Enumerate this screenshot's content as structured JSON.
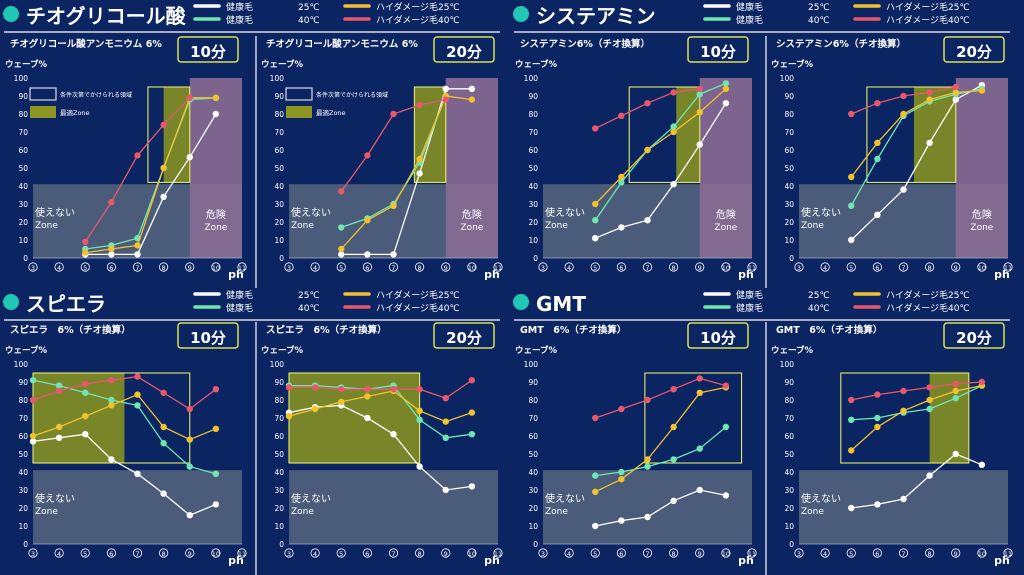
{
  "colors": {
    "background": "#0b2462",
    "healthy_25": "#ffffff",
    "damaged_25": "#f2c12e",
    "healthy_40": "#6fe6b2",
    "damaged_40": "#e8586a",
    "unusable_zone": "#56667f",
    "danger_zone": "#8a6c94",
    "optimal_zone": "#8c9620",
    "conditional_box": "#e3e86b"
  },
  "common": {
    "wave_label": "ウェーブ%",
    "ph_label": "ph",
    "unusable_zone_label_1": "使えない",
    "unusable_zone_label_2": "Zone",
    "danger_zone_label_1": "危険",
    "danger_zone_label_2": "Zone",
    "y_ticks": [
      "0",
      "10",
      "20",
      "30",
      "40",
      "50",
      "60",
      "70",
      "80",
      "90",
      "100"
    ],
    "x_ticks": [
      "3",
      "4",
      "5",
      "6",
      "7",
      "8",
      "9",
      "10",
      "11"
    ]
  },
  "legend_inline": {
    "conditional": "条件次第でかけられる領域",
    "optimal": "最適Zone"
  },
  "sections": [
    {
      "title": "チオグリコール酸",
      "legend": [
        {
          "name": "健康毛",
          "temp": "25℃",
          "color": "#ffffff"
        },
        {
          "name": "健康毛",
          "temp": "40℃",
          "color": "#6fe6b2"
        },
        {
          "name": "ハイダメージ毛",
          "temp": "25℃",
          "color": "#f2c12e"
        },
        {
          "name": "ハイダメージ毛",
          "temp": "40℃",
          "color": "#e8586a"
        }
      ]
    },
    {
      "title": "システアミン",
      "legend": [
        {
          "name": "健康毛",
          "temp": "25℃",
          "color": "#ffffff"
        },
        {
          "name": "健康毛",
          "temp": "40℃",
          "color": "#6fe6b2"
        },
        {
          "name": "ハイダメージ毛",
          "temp": "25℃",
          "color": "#f2c12e"
        },
        {
          "name": "ハイダメージ毛",
          "temp": "40℃",
          "color": "#e8586a"
        }
      ]
    },
    {
      "title": "スピエラ",
      "legend": [
        {
          "name": "健康毛",
          "temp": "25℃",
          "color": "#ffffff"
        },
        {
          "name": "健康毛",
          "temp": "40℃",
          "color": "#6fe6b2"
        },
        {
          "name": "ハイダメージ毛",
          "temp": "25℃",
          "color": "#f2c12e"
        },
        {
          "name": "ハイダメージ毛",
          "temp": "40℃",
          "color": "#e8586a"
        }
      ]
    },
    {
      "title": "GMT",
      "legend": [
        {
          "name": "健康毛",
          "temp": "25℃",
          "color": "#ffffff"
        },
        {
          "name": "健康毛",
          "temp": "40℃",
          "color": "#6fe6b2"
        },
        {
          "name": "ハイダメージ毛",
          "temp": "25℃",
          "color": "#f2c12e"
        },
        {
          "name": "ハイダメージ毛",
          "temp": "40℃",
          "color": "#e8586a"
        }
      ]
    }
  ],
  "chart_data": [
    {
      "type": "line",
      "title": "チオグリコール酸アンモニウム 6%",
      "time": "10分",
      "xlabel": "ph",
      "ylabel": "ウェーブ%",
      "xlim": [
        3,
        11
      ],
      "ylim": [
        0,
        100
      ],
      "unusable_below": 41,
      "danger_x": [
        9,
        11
      ],
      "conditional_box": {
        "x": [
          7.4,
          9
        ],
        "y": [
          42,
          95
        ]
      },
      "optimal_zone": {
        "x": [
          8,
          9
        ],
        "y": [
          42,
          95
        ]
      },
      "show_inline_legend": true,
      "series": [
        {
          "color": "#ffffff",
          "x": [
            5,
            6,
            7,
            8,
            9,
            10
          ],
          "y": [
            2,
            2,
            2,
            34,
            56,
            80
          ]
        },
        {
          "color": "#6fe6b2",
          "x": [
            5,
            6,
            7,
            8,
            9,
            10
          ],
          "y": [
            5,
            7,
            11,
            50,
            88,
            89
          ]
        },
        {
          "color": "#f2c12e",
          "x": [
            5,
            6,
            7,
            8,
            9,
            10
          ],
          "y": [
            3,
            5,
            7,
            50,
            89,
            89
          ]
        },
        {
          "color": "#e8586a",
          "x": [
            5,
            6,
            7,
            8,
            9
          ],
          "y": [
            9,
            31,
            57,
            74,
            89
          ]
        }
      ]
    },
    {
      "type": "line",
      "title": "チオグリコール酸アンモニウム 6%",
      "time": "20分",
      "xlabel": "ph",
      "ylabel": "ウェーブ%",
      "xlim": [
        3,
        11
      ],
      "ylim": [
        0,
        100
      ],
      "unusable_below": 41,
      "danger_x": [
        9,
        11
      ],
      "conditional_box": {
        "x": [
          7.8,
          9
        ],
        "y": [
          42,
          95
        ]
      },
      "optimal_zone": {
        "x": [
          7.8,
          9
        ],
        "y": [
          42,
          95
        ]
      },
      "show_inline_legend": true,
      "series": [
        {
          "color": "#ffffff",
          "x": [
            5,
            6,
            7,
            8,
            9,
            10
          ],
          "y": [
            2,
            2,
            2,
            47,
            94,
            94
          ]
        },
        {
          "color": "#6fe6b2",
          "x": [
            5,
            6,
            7,
            8,
            9
          ],
          "y": [
            17,
            22,
            30,
            53,
            90
          ]
        },
        {
          "color": "#f2c12e",
          "x": [
            5,
            6,
            7,
            8,
            9,
            10
          ],
          "y": [
            5,
            21,
            29,
            55,
            90,
            88
          ]
        },
        {
          "color": "#e8586a",
          "x": [
            5,
            6,
            7,
            8,
            9
          ],
          "y": [
            37,
            57,
            80,
            85,
            88
          ]
        }
      ]
    },
    {
      "type": "line",
      "title": "システアミン6%（チオ換算）",
      "time": "10分",
      "xlabel": "ph",
      "ylabel": "ウェーブ%",
      "xlim": [
        3,
        11
      ],
      "ylim": [
        0,
        100
      ],
      "unusable_below": 41,
      "danger_x": [
        9,
        11
      ],
      "conditional_box": {
        "x": [
          6.3,
          9
        ],
        "y": [
          42,
          95
        ]
      },
      "optimal_zone": {
        "x": [
          8.1,
          9
        ],
        "y": [
          42,
          95
        ]
      },
      "show_inline_legend": false,
      "series": [
        {
          "color": "#ffffff",
          "x": [
            5,
            6,
            7,
            8,
            9,
            10
          ],
          "y": [
            11,
            17,
            21,
            41,
            63,
            86
          ]
        },
        {
          "color": "#6fe6b2",
          "x": [
            5,
            6,
            7,
            8,
            9,
            10
          ],
          "y": [
            21,
            42,
            60,
            73,
            91,
            97
          ]
        },
        {
          "color": "#f2c12e",
          "x": [
            5,
            6,
            7,
            8,
            9,
            10
          ],
          "y": [
            30,
            45,
            60,
            70,
            81,
            94
          ]
        },
        {
          "color": "#e8586a",
          "x": [
            5,
            6,
            7,
            8,
            9
          ],
          "y": [
            72,
            79,
            86,
            92,
            94
          ]
        }
      ]
    },
    {
      "type": "line",
      "title": "システアミン6%（チオ換算）",
      "time": "20分",
      "xlabel": "ph",
      "ylabel": "ウェーブ%",
      "xlim": [
        3,
        11
      ],
      "ylim": [
        0,
        100
      ],
      "unusable_below": 41,
      "danger_x": [
        9,
        11
      ],
      "conditional_box": {
        "x": [
          5.6,
          9
        ],
        "y": [
          42,
          95
        ]
      },
      "optimal_zone": {
        "x": [
          7.4,
          9
        ],
        "y": [
          42,
          95
        ]
      },
      "show_inline_legend": false,
      "series": [
        {
          "color": "#ffffff",
          "x": [
            5,
            6,
            7,
            8,
            9,
            10
          ],
          "y": [
            10,
            24,
            38,
            64,
            88,
            96
          ]
        },
        {
          "color": "#6fe6b2",
          "x": [
            5,
            6,
            7,
            8,
            9,
            10
          ],
          "y": [
            29,
            55,
            79,
            87,
            91,
            94
          ]
        },
        {
          "color": "#f2c12e",
          "x": [
            5,
            6,
            7,
            8,
            9,
            10
          ],
          "y": [
            45,
            64,
            80,
            88,
            92,
            93
          ]
        },
        {
          "color": "#e8586a",
          "x": [
            5,
            6,
            7,
            8,
            9
          ],
          "y": [
            80,
            86,
            90,
            92,
            95
          ]
        }
      ]
    },
    {
      "type": "line",
      "title": "スピエラ　6%（チオ換算）",
      "time": "10分",
      "xlabel": "ph",
      "ylabel": "ウェーブ%",
      "xlim": [
        3,
        11
      ],
      "ylim": [
        0,
        100
      ],
      "unusable_below": 41,
      "danger_x": null,
      "conditional_box": {
        "x": [
          3,
          9
        ],
        "y": [
          45,
          95
        ]
      },
      "optimal_zone": {
        "x": [
          3,
          6.5
        ],
        "y": [
          45,
          95
        ]
      },
      "show_inline_legend": false,
      "series": [
        {
          "color": "#ffffff",
          "x": [
            3,
            4,
            5,
            6,
            7,
            8,
            9,
            10
          ],
          "y": [
            57,
            59,
            61,
            47,
            39,
            28,
            16,
            22
          ]
        },
        {
          "color": "#6fe6b2",
          "x": [
            3,
            4,
            5,
            6,
            7,
            8,
            9,
            10
          ],
          "y": [
            91,
            88,
            84,
            80,
            77,
            56,
            43,
            39
          ]
        },
        {
          "color": "#f2c12e",
          "x": [
            3,
            4,
            5,
            6,
            7,
            8,
            9,
            10
          ],
          "y": [
            60,
            65,
            71,
            77,
            83,
            65,
            58,
            64
          ]
        },
        {
          "color": "#e8586a",
          "x": [
            3,
            4,
            5,
            6,
            7,
            8,
            9,
            10
          ],
          "y": [
            80,
            85,
            89,
            91,
            93,
            84,
            75,
            86
          ]
        }
      ]
    },
    {
      "type": "line",
      "title": "スピエラ　6%（チオ換算）",
      "time": "20分",
      "xlabel": "ph",
      "ylabel": "ウェーブ%",
      "xlim": [
        3,
        11
      ],
      "ylim": [
        0,
        100
      ],
      "unusable_below": 41,
      "danger_x": null,
      "conditional_box": {
        "x": [
          3,
          8
        ],
        "y": [
          45,
          95
        ]
      },
      "optimal_zone": {
        "x": [
          3,
          8
        ],
        "y": [
          45,
          95
        ]
      },
      "show_inline_legend": false,
      "series": [
        {
          "color": "#ffffff",
          "x": [
            3,
            4,
            5,
            6,
            7,
            8,
            9,
            10
          ],
          "y": [
            73,
            76,
            77,
            70,
            61,
            43,
            30,
            32
          ]
        },
        {
          "color": "#6fe6b2",
          "x": [
            3,
            4,
            5,
            6,
            7,
            8,
            9,
            10
          ],
          "y": [
            88,
            88,
            87,
            86,
            88,
            69,
            59,
            61
          ]
        },
        {
          "color": "#f2c12e",
          "x": [
            3,
            4,
            5,
            6,
            7,
            8,
            9,
            10
          ],
          "y": [
            71,
            75,
            79,
            82,
            85,
            74,
            68,
            73
          ]
        },
        {
          "color": "#e8586a",
          "x": [
            3,
            4,
            5,
            6,
            7,
            8,
            9,
            10
          ],
          "y": [
            87,
            87,
            86,
            86,
            86,
            86,
            81,
            91
          ]
        }
      ]
    },
    {
      "type": "line",
      "title": "GMT　6%（チオ換算）",
      "time": "10分",
      "xlabel": "ph",
      "ylabel": "ウェーブ%",
      "xlim": [
        3,
        11
      ],
      "ylim": [
        0,
        100
      ],
      "unusable_below": 41,
      "danger_x": null,
      "conditional_box": {
        "x": [
          6.9,
          10.6
        ],
        "y": [
          45,
          95
        ]
      },
      "optimal_zone": null,
      "show_inline_legend": false,
      "series": [
        {
          "color": "#ffffff",
          "x": [
            5,
            6,
            7,
            8,
            9,
            10
          ],
          "y": [
            10,
            13,
            15,
            24,
            30,
            27
          ]
        },
        {
          "color": "#6fe6b2",
          "x": [
            5,
            6,
            7,
            8,
            9,
            10
          ],
          "y": [
            38,
            40,
            43,
            47,
            53,
            65
          ]
        },
        {
          "color": "#f2c12e",
          "x": [
            5,
            6,
            7,
            8,
            9,
            10
          ],
          "y": [
            29,
            36,
            47,
            65,
            84,
            87
          ]
        },
        {
          "color": "#e8586a",
          "x": [
            5,
            6,
            7,
            8,
            9,
            10
          ],
          "y": [
            70,
            75,
            80,
            86,
            92,
            88
          ]
        }
      ]
    },
    {
      "type": "line",
      "title": "GMT　6%（チオ換算）",
      "time": "20分",
      "xlabel": "ph",
      "ylabel": "ウェーブ%",
      "xlim": [
        3,
        11
      ],
      "ylim": [
        0,
        100
      ],
      "unusable_below": 41,
      "danger_x": null,
      "conditional_box": {
        "x": [
          4.6,
          9.5
        ],
        "y": [
          45,
          95
        ]
      },
      "optimal_zone": {
        "x": [
          8,
          9.5
        ],
        "y": [
          45,
          95
        ]
      },
      "show_inline_legend": false,
      "series": [
        {
          "color": "#ffffff",
          "x": [
            5,
            6,
            7,
            8,
            9,
            10
          ],
          "y": [
            20,
            22,
            25,
            38,
            50,
            44
          ]
        },
        {
          "color": "#6fe6b2",
          "x": [
            5,
            6,
            7,
            8,
            9,
            10
          ],
          "y": [
            69,
            70,
            73,
            75,
            81,
            88
          ]
        },
        {
          "color": "#f2c12e",
          "x": [
            5,
            6,
            7,
            8,
            9,
            10
          ],
          "y": [
            52,
            65,
            74,
            80,
            85,
            88
          ]
        },
        {
          "color": "#e8586a",
          "x": [
            5,
            6,
            7,
            8,
            9,
            10
          ],
          "y": [
            80,
            83,
            85,
            87,
            89,
            90
          ]
        }
      ]
    }
  ]
}
